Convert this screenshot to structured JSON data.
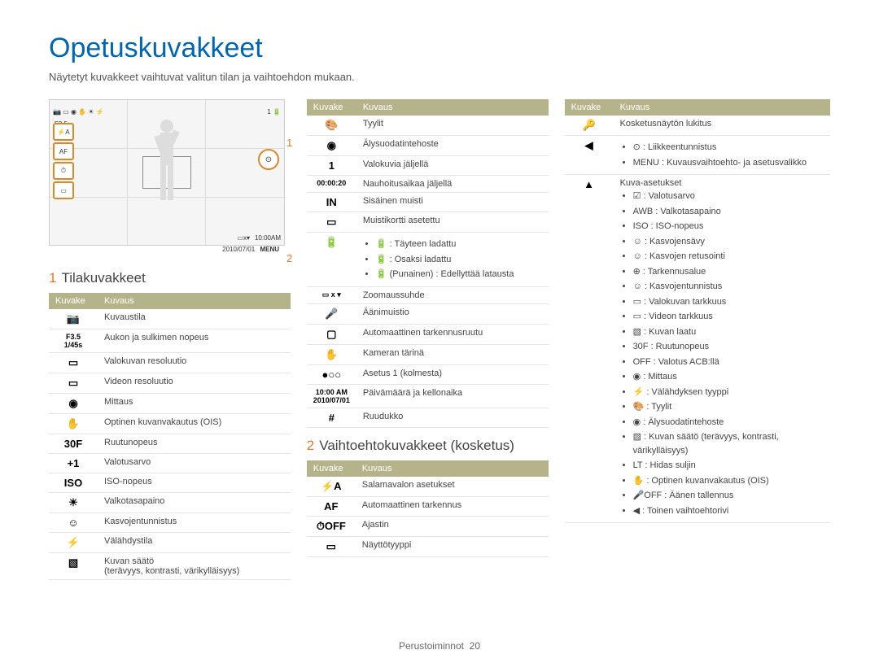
{
  "page": {
    "title": "Opetuskuvakkeet",
    "subtitle": "Näytetyt kuvakkeet vaihtuvat valitun tilan ja vaihtoehdon mukaan.",
    "footer_label": "Perustoiminnot",
    "footer_page": "20"
  },
  "callouts": {
    "c1": "1",
    "c2": "2"
  },
  "lcd": {
    "aperture": "F3.5",
    "shutter": "1/45s",
    "zoom_label": "x",
    "time": "10:00AM",
    "date": "2010/07/01",
    "menu": "MENU"
  },
  "headers": {
    "icon": "Kuvake",
    "desc": "Kuvaus"
  },
  "section1": {
    "num": "1",
    "title": "Tilakuvakkeet"
  },
  "section2": {
    "num": "2",
    "title": "Vaihtoehtokuvakkeet (kosketus)"
  },
  "table1": [
    {
      "icon": "📷",
      "desc": "Kuvaustila"
    },
    {
      "icon": "F3.5\n1/45s",
      "desc": "Aukon ja sulkimen nopeus"
    },
    {
      "icon": "▭",
      "desc": "Valokuvan resoluutio"
    },
    {
      "icon": "▭",
      "desc": "Videon resoluutio"
    },
    {
      "icon": "◉",
      "desc": "Mittaus"
    },
    {
      "icon": "✋",
      "desc": "Optinen kuvanvakautus (OIS)"
    },
    {
      "icon": "30F",
      "desc": "Ruutunopeus"
    },
    {
      "icon": "+1",
      "desc": "Valotusarvo"
    },
    {
      "icon": "ISO",
      "desc": "ISO-nopeus"
    },
    {
      "icon": "☀",
      "desc": "Valkotasapaino"
    },
    {
      "icon": "☺",
      "desc": "Kasvojentunnistus"
    },
    {
      "icon": "⚡",
      "desc": "Välähdystila"
    },
    {
      "icon": "▧",
      "desc": "Kuvan säätö\n(terävyys, kontrasti, värikylläisyys)"
    }
  ],
  "table2a": [
    {
      "icon": "🎨",
      "desc": "Tyylit"
    },
    {
      "icon": "◉",
      "desc": "Älysuodatintehoste"
    },
    {
      "icon": "1",
      "desc": "Valokuvia jäljellä"
    },
    {
      "icon": "00:00:20",
      "desc": "Nauhoitusaikaa jäljellä"
    },
    {
      "icon": "IN",
      "desc": "Sisäinen muisti"
    },
    {
      "icon": "▭",
      "desc": "Muistikortti asetettu"
    },
    {
      "icon": "🔋",
      "desc": "",
      "sub": [
        "🔋 : Täyteen ladattu",
        "🔋 : Osaksi ladattu",
        "🔋 (Punainen) : Edellyttää latausta"
      ]
    },
    {
      "icon": "▭ x ▾",
      "desc": "Zoomaussuhde"
    },
    {
      "icon": "🎤",
      "desc": "Äänimuistio"
    },
    {
      "icon": "▢",
      "desc": "Automaattinen tarkennusruutu"
    },
    {
      "icon": "✋",
      "desc": "Kameran tärinä"
    },
    {
      "icon": "●○○",
      "desc": "Asetus 1 (kolmesta)"
    },
    {
      "icon": "10:00 AM\n2010/07/01",
      "desc": "Päivämäärä ja kellonaika"
    },
    {
      "icon": "#",
      "desc": "Ruudukko"
    }
  ],
  "table2b": [
    {
      "icon": "⚡A",
      "desc": "Salamavalon asetukset"
    },
    {
      "icon": "AF",
      "desc": "Automaattinen tarkennus"
    },
    {
      "icon": "⏱OFF",
      "desc": "Ajastin"
    },
    {
      "icon": "▭",
      "desc": "Näyttötyyppi"
    }
  ],
  "table3": [
    {
      "icon": "🔑",
      "desc": "Kosketusnäytön lukitus"
    },
    {
      "icon": "◀",
      "desc": "",
      "sub": [
        "⊙ : Liikkeentunnistus",
        "MENU : Kuvausvaihtoehto- ja asetusvalikko"
      ]
    },
    {
      "icon": "▲",
      "desc": "Kuva-asetukset",
      "sub": [
        "☑ : Valotusarvo",
        "AWB : Valkotasapaino",
        "ISO : ISO-nopeus",
        "☺ : Kasvojensävy",
        "☺ : Kasvojen retusointi",
        "⊕ : Tarkennusalue",
        "☺ : Kasvojentunnistus",
        "▭ : Valokuvan tarkkuus",
        "▭ : Videon tarkkuus",
        "▧ : Kuvan laatu",
        "30F : Ruutunopeus",
        "OFF : Valotus ACB:llä",
        "◉ : Mittaus",
        "⚡ : Välähdyksen tyyppi",
        "🎨 : Tyylit",
        "◉ : Älysuodatintehoste",
        "▧ : Kuvan säätö (terävyys, kontrasti, värikylläisyys)",
        "LT : Hidas suljin",
        "✋ : Optinen kuvanvakautus (OIS)",
        "🎤OFF : Äänen tallennus",
        "◀ : Toinen vaihtoehtorivi"
      ]
    }
  ]
}
